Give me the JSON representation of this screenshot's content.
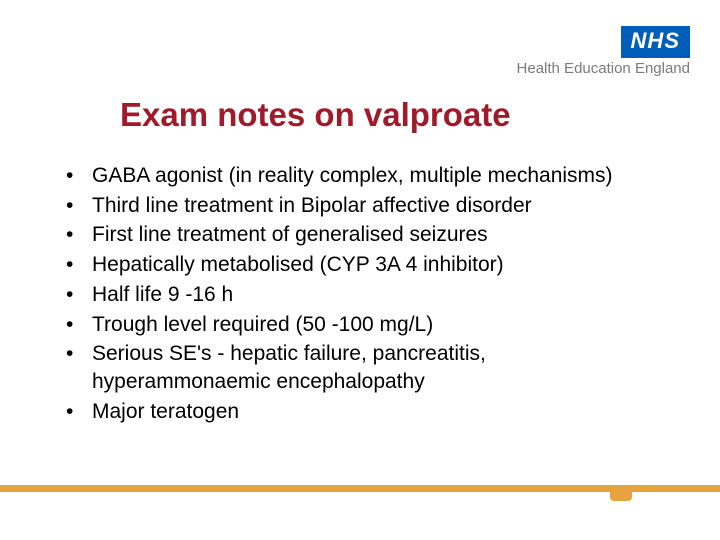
{
  "logo": {
    "nhs": "NHS",
    "sub": "Health Education England"
  },
  "title": "Exam notes on valproate",
  "bullets": [
    "GABA agonist (in reality complex, multiple mechanisms)",
    "Third line treatment in Bipolar affective disorder",
    "First line treatment of generalised seizures",
    "Hepatically metabolised (CYP 3A 4 inhibitor)",
    "Half life 9 -16 h",
    "Trough level required (50 -100 mg/L)",
    "Serious SE's - hepatic failure, pancreatitis, hyperammonaemic encephalopathy",
    "Major teratogen"
  ],
  "colors": {
    "title": "#9f1a2a",
    "nhs_bg": "#005eb8",
    "logo_sub": "#7a7a7a",
    "footer": "#e8a33d",
    "text": "#000000",
    "background": "#ffffff"
  },
  "fonts": {
    "title_size": 33,
    "body_size": 21,
    "logo_sub_size": 15
  }
}
